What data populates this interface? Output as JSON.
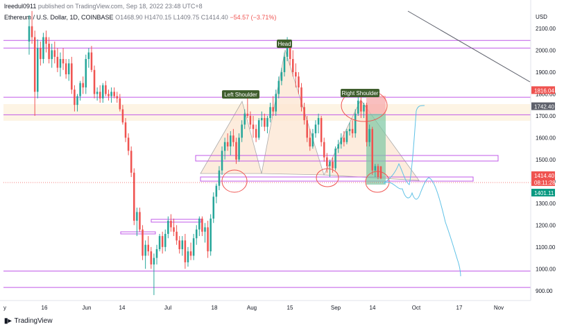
{
  "header": {
    "author": "lreedul0911",
    "published_text": "published on TradingView.com, Sep 18, 2022 23:48 UTC+8"
  },
  "symbol_bar": {
    "symbol": "Ethereum / U.S. Dollar, 1D, COINBASE",
    "open": "O1468.90",
    "high": "H1470.15",
    "low": "L1409.75",
    "close": "C1414.40",
    "change": "−54.57 (−3.71%)"
  },
  "footer": {
    "logo": "TradingView"
  },
  "chart_data": {
    "type": "candlestick",
    "currency": "USD",
    "y_ticks": [
      900,
      1000,
      1100,
      1200,
      1300,
      1400,
      1500,
      1600,
      1700,
      1800,
      1900,
      2000,
      2100
    ],
    "y_tick_labels": [
      "900.00",
      "1000.00",
      "1100.00",
      "1200.00",
      "1300.00",
      "1400.00",
      "1500.00",
      "1600.00",
      "1700.00",
      "1800.00",
      "1900.00",
      "2000.00",
      "2100.00"
    ],
    "ylim": [
      855,
      2230
    ],
    "x_tick_labels": [
      "y",
      "16",
      "Jun",
      "14",
      "Jul",
      "18",
      "Aug",
      "15",
      "Sep",
      "14",
      "Oct",
      "17",
      "Nov"
    ],
    "price_labels": [
      {
        "text": "1816.04",
        "value": 1816.04,
        "color": "#ef5350"
      },
      {
        "text": "1742.40",
        "value": 1742.4,
        "color": "#5d606b"
      },
      {
        "text": "1414.40",
        "value": 1414.4,
        "color": "#ef5350"
      },
      {
        "text": "08:11:28",
        "value": 1414.4,
        "color": "#ef5350"
      },
      {
        "text": "1401.11",
        "value": 1401.11,
        "color": "#089981"
      }
    ],
    "annotations": [
      "Left Shoulder",
      "Head",
      "Right Shoulder"
    ],
    "horizontal_levels": [
      2045,
      2010,
      1785,
      1705,
      990,
      915
    ],
    "candles": [
      {
        "o": 2040,
        "h": 2160,
        "l": 1980,
        "c": 2110
      },
      {
        "o": 2110,
        "h": 2180,
        "l": 2030,
        "c": 2060
      },
      {
        "o": 2060,
        "h": 2090,
        "l": 1700,
        "c": 1810
      },
      {
        "o": 1810,
        "h": 2050,
        "l": 1780,
        "c": 2010
      },
      {
        "o": 2010,
        "h": 2040,
        "l": 1930,
        "c": 1960
      },
      {
        "o": 1960,
        "h": 2080,
        "l": 1940,
        "c": 2060
      },
      {
        "o": 2060,
        "h": 2090,
        "l": 1990,
        "c": 2030
      },
      {
        "o": 2030,
        "h": 2060,
        "l": 1940,
        "c": 1960
      },
      {
        "o": 1960,
        "h": 2030,
        "l": 1920,
        "c": 2000
      },
      {
        "o": 2000,
        "h": 2040,
        "l": 1940,
        "c": 1970
      },
      {
        "o": 1970,
        "h": 2010,
        "l": 1900,
        "c": 1920
      },
      {
        "o": 1920,
        "h": 1990,
        "l": 1880,
        "c": 1960
      },
      {
        "o": 1960,
        "h": 2010,
        "l": 1910,
        "c": 1940
      },
      {
        "o": 1940,
        "h": 1960,
        "l": 1870,
        "c": 1890
      },
      {
        "o": 1890,
        "h": 1960,
        "l": 1860,
        "c": 1940
      },
      {
        "o": 1940,
        "h": 1970,
        "l": 1800,
        "c": 1820
      },
      {
        "o": 1820,
        "h": 1840,
        "l": 1720,
        "c": 1750
      },
      {
        "o": 1750,
        "h": 1800,
        "l": 1720,
        "c": 1790
      },
      {
        "o": 1790,
        "h": 1860,
        "l": 1770,
        "c": 1850
      },
      {
        "o": 1850,
        "h": 1880,
        "l": 1800,
        "c": 1830
      },
      {
        "o": 1830,
        "h": 1980,
        "l": 1800,
        "c": 1960
      },
      {
        "o": 1960,
        "h": 2010,
        "l": 1920,
        "c": 1990
      },
      {
        "o": 1990,
        "h": 2020,
        "l": 1900,
        "c": 1910
      },
      {
        "o": 1910,
        "h": 1930,
        "l": 1780,
        "c": 1800
      },
      {
        "o": 1800,
        "h": 1830,
        "l": 1770,
        "c": 1810
      },
      {
        "o": 1810,
        "h": 1840,
        "l": 1760,
        "c": 1780
      },
      {
        "o": 1780,
        "h": 1850,
        "l": 1760,
        "c": 1840
      },
      {
        "o": 1840,
        "h": 1860,
        "l": 1790,
        "c": 1800
      },
      {
        "o": 1800,
        "h": 1820,
        "l": 1770,
        "c": 1790
      },
      {
        "o": 1790,
        "h": 1830,
        "l": 1760,
        "c": 1810
      },
      {
        "o": 1810,
        "h": 1830,
        "l": 1780,
        "c": 1790
      },
      {
        "o": 1790,
        "h": 1810,
        "l": 1760,
        "c": 1780
      },
      {
        "o": 1780,
        "h": 1800,
        "l": 1720,
        "c": 1730
      },
      {
        "o": 1730,
        "h": 1750,
        "l": 1660,
        "c": 1670
      },
      {
        "o": 1670,
        "h": 1690,
        "l": 1580,
        "c": 1600
      },
      {
        "o": 1600,
        "h": 1620,
        "l": 1520,
        "c": 1540
      },
      {
        "o": 1540,
        "h": 1560,
        "l": 1420,
        "c": 1440
      },
      {
        "o": 1440,
        "h": 1460,
        "l": 1200,
        "c": 1220
      },
      {
        "o": 1220,
        "h": 1280,
        "l": 1150,
        "c": 1260
      },
      {
        "o": 1260,
        "h": 1280,
        "l": 1170,
        "c": 1180
      },
      {
        "o": 1180,
        "h": 1200,
        "l": 1040,
        "c": 1060
      },
      {
        "o": 1060,
        "h": 1130,
        "l": 1000,
        "c": 1110
      },
      {
        "o": 1110,
        "h": 1150,
        "l": 1060,
        "c": 1080
      },
      {
        "o": 1080,
        "h": 1100,
        "l": 1000,
        "c": 1020
      },
      {
        "o": 1020,
        "h": 1070,
        "l": 880,
        "c": 1050
      },
      {
        "o": 1050,
        "h": 1110,
        "l": 1020,
        "c": 1090
      },
      {
        "o": 1090,
        "h": 1160,
        "l": 1080,
        "c": 1150
      },
      {
        "o": 1150,
        "h": 1170,
        "l": 1070,
        "c": 1100
      },
      {
        "o": 1100,
        "h": 1180,
        "l": 1080,
        "c": 1160
      },
      {
        "o": 1160,
        "h": 1240,
        "l": 1140,
        "c": 1220
      },
      {
        "o": 1220,
        "h": 1250,
        "l": 1170,
        "c": 1190
      },
      {
        "o": 1190,
        "h": 1230,
        "l": 1150,
        "c": 1170
      },
      {
        "o": 1170,
        "h": 1200,
        "l": 1110,
        "c": 1130
      },
      {
        "o": 1130,
        "h": 1150,
        "l": 1070,
        "c": 1090
      },
      {
        "o": 1090,
        "h": 1150,
        "l": 1060,
        "c": 1130
      },
      {
        "o": 1130,
        "h": 1160,
        "l": 1000,
        "c": 1030
      },
      {
        "o": 1030,
        "h": 1100,
        "l": 1010,
        "c": 1080
      },
      {
        "o": 1080,
        "h": 1120,
        "l": 1040,
        "c": 1060
      },
      {
        "o": 1060,
        "h": 1160,
        "l": 1040,
        "c": 1140
      },
      {
        "o": 1140,
        "h": 1200,
        "l": 1110,
        "c": 1180
      },
      {
        "o": 1180,
        "h": 1240,
        "l": 1150,
        "c": 1230
      },
      {
        "o": 1230,
        "h": 1240,
        "l": 1150,
        "c": 1170
      },
      {
        "o": 1170,
        "h": 1210,
        "l": 1120,
        "c": 1190
      },
      {
        "o": 1190,
        "h": 1220,
        "l": 1050,
        "c": 1080
      },
      {
        "o": 1080,
        "h": 1250,
        "l": 1060,
        "c": 1230
      },
      {
        "o": 1230,
        "h": 1350,
        "l": 1210,
        "c": 1330
      },
      {
        "o": 1330,
        "h": 1390,
        "l": 1300,
        "c": 1380
      },
      {
        "o": 1380,
        "h": 1470,
        "l": 1360,
        "c": 1450
      },
      {
        "o": 1450,
        "h": 1560,
        "l": 1430,
        "c": 1540
      },
      {
        "o": 1540,
        "h": 1600,
        "l": 1500,
        "c": 1580
      },
      {
        "o": 1580,
        "h": 1620,
        "l": 1540,
        "c": 1560
      },
      {
        "o": 1560,
        "h": 1630,
        "l": 1520,
        "c": 1610
      },
      {
        "o": 1610,
        "h": 1640,
        "l": 1560,
        "c": 1580
      },
      {
        "o": 1580,
        "h": 1600,
        "l": 1480,
        "c": 1500
      },
      {
        "o": 1500,
        "h": 1620,
        "l": 1490,
        "c": 1600
      },
      {
        "o": 1600,
        "h": 1680,
        "l": 1580,
        "c": 1660
      },
      {
        "o": 1660,
        "h": 1730,
        "l": 1640,
        "c": 1710
      },
      {
        "o": 1710,
        "h": 1790,
        "l": 1690,
        "c": 1700
      },
      {
        "o": 1700,
        "h": 1720,
        "l": 1640,
        "c": 1660
      },
      {
        "o": 1660,
        "h": 1700,
        "l": 1600,
        "c": 1640
      },
      {
        "o": 1640,
        "h": 1660,
        "l": 1580,
        "c": 1600
      },
      {
        "o": 1600,
        "h": 1690,
        "l": 1590,
        "c": 1680
      },
      {
        "o": 1680,
        "h": 1720,
        "l": 1650,
        "c": 1690
      },
      {
        "o": 1690,
        "h": 1710,
        "l": 1630,
        "c": 1650
      },
      {
        "o": 1650,
        "h": 1700,
        "l": 1620,
        "c": 1690
      },
      {
        "o": 1690,
        "h": 1760,
        "l": 1670,
        "c": 1740
      },
      {
        "o": 1740,
        "h": 1790,
        "l": 1700,
        "c": 1720
      },
      {
        "o": 1720,
        "h": 1820,
        "l": 1700,
        "c": 1800
      },
      {
        "o": 1800,
        "h": 1880,
        "l": 1780,
        "c": 1860
      },
      {
        "o": 1860,
        "h": 1920,
        "l": 1840,
        "c": 1900
      },
      {
        "o": 1900,
        "h": 1990,
        "l": 1880,
        "c": 1970
      },
      {
        "o": 1970,
        "h": 2060,
        "l": 1950,
        "c": 2020
      },
      {
        "o": 2020,
        "h": 2030,
        "l": 1930,
        "c": 1960
      },
      {
        "o": 1960,
        "h": 2000,
        "l": 1880,
        "c": 1900
      },
      {
        "o": 1900,
        "h": 1940,
        "l": 1830,
        "c": 1880
      },
      {
        "o": 1880,
        "h": 1900,
        "l": 1800,
        "c": 1830
      },
      {
        "o": 1830,
        "h": 1850,
        "l": 1720,
        "c": 1740
      },
      {
        "o": 1740,
        "h": 1760,
        "l": 1660,
        "c": 1680
      },
      {
        "o": 1680,
        "h": 1700,
        "l": 1580,
        "c": 1600
      },
      {
        "o": 1600,
        "h": 1640,
        "l": 1540,
        "c": 1560
      },
      {
        "o": 1560,
        "h": 1640,
        "l": 1550,
        "c": 1620
      },
      {
        "o": 1620,
        "h": 1680,
        "l": 1600,
        "c": 1660
      },
      {
        "o": 1660,
        "h": 1710,
        "l": 1620,
        "c": 1690
      },
      {
        "o": 1690,
        "h": 1700,
        "l": 1560,
        "c": 1580
      },
      {
        "o": 1580,
        "h": 1600,
        "l": 1490,
        "c": 1510
      },
      {
        "o": 1510,
        "h": 1530,
        "l": 1440,
        "c": 1470
      },
      {
        "o": 1470,
        "h": 1500,
        "l": 1420,
        "c": 1490
      },
      {
        "o": 1490,
        "h": 1510,
        "l": 1440,
        "c": 1460
      },
      {
        "o": 1460,
        "h": 1560,
        "l": 1450,
        "c": 1550
      },
      {
        "o": 1550,
        "h": 1590,
        "l": 1530,
        "c": 1570
      },
      {
        "o": 1570,
        "h": 1620,
        "l": 1550,
        "c": 1600
      },
      {
        "o": 1600,
        "h": 1630,
        "l": 1560,
        "c": 1580
      },
      {
        "o": 1580,
        "h": 1640,
        "l": 1570,
        "c": 1630
      },
      {
        "o": 1630,
        "h": 1670,
        "l": 1610,
        "c": 1640
      },
      {
        "o": 1640,
        "h": 1680,
        "l": 1600,
        "c": 1620
      },
      {
        "o": 1620,
        "h": 1730,
        "l": 1600,
        "c": 1710
      },
      {
        "o": 1710,
        "h": 1790,
        "l": 1700,
        "c": 1770
      },
      {
        "o": 1770,
        "h": 1790,
        "l": 1690,
        "c": 1720
      },
      {
        "o": 1720,
        "h": 1760,
        "l": 1690,
        "c": 1750
      },
      {
        "o": 1750,
        "h": 1760,
        "l": 1560,
        "c": 1580
      },
      {
        "o": 1580,
        "h": 1660,
        "l": 1560,
        "c": 1640
      },
      {
        "o": 1640,
        "h": 1650,
        "l": 1430,
        "c": 1450
      },
      {
        "o": 1450,
        "h": 1480,
        "l": 1420,
        "c": 1470
      },
      {
        "o": 1470,
        "h": 1480,
        "l": 1410,
        "c": 1420
      },
      {
        "o": 1468.9,
        "h": 1470.15,
        "l": 1409.75,
        "c": 1414.4
      }
    ]
  }
}
